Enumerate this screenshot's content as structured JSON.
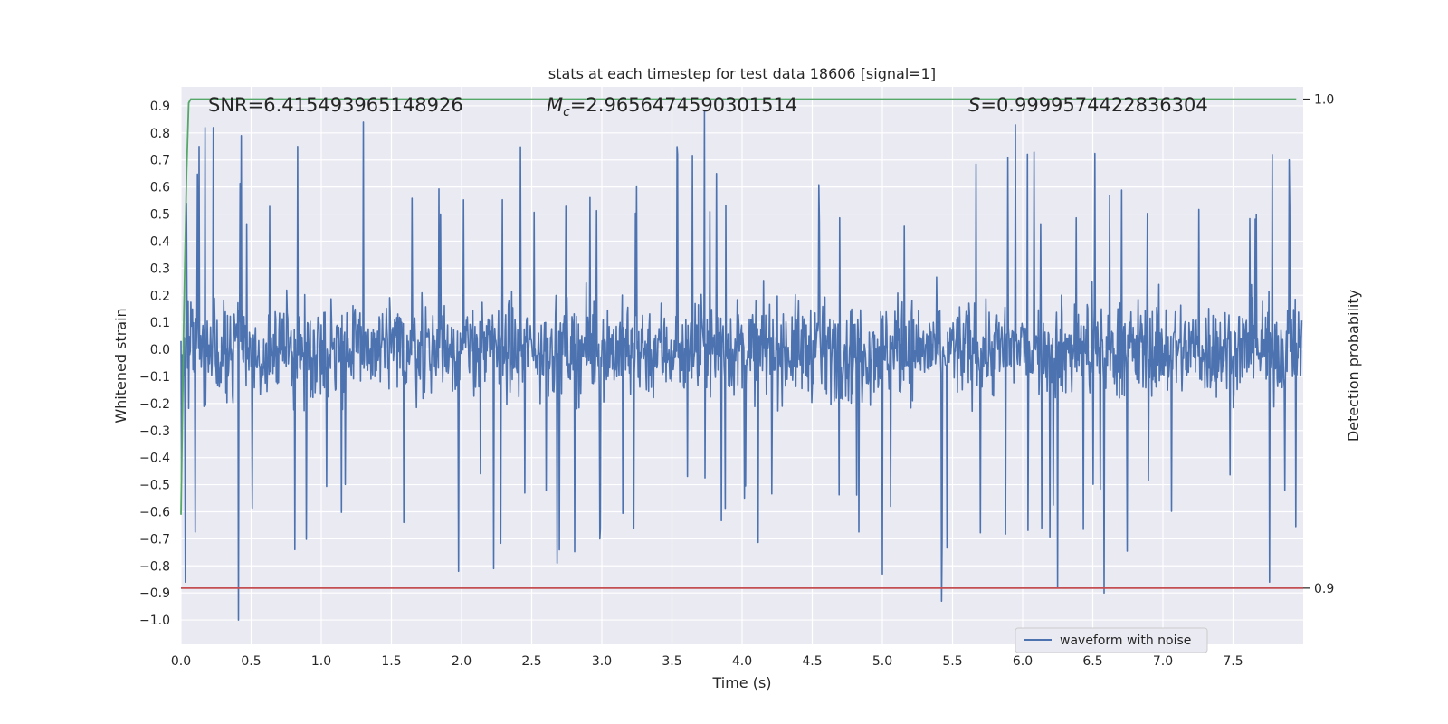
{
  "chart_data": {
    "type": "line",
    "title": "stats at each timestep for test data 18606 [signal=1]",
    "xlabel": "Time (s)",
    "ylabel": "Whitened strain",
    "ylabel_right": "Detection probability",
    "xlim": [
      0.0,
      8.0
    ],
    "ylim": [
      -1.09,
      0.97
    ],
    "ylim_right": [
      0.8885,
      1.0025
    ],
    "x_ticks": [
      0.0,
      0.5,
      1.0,
      1.5,
      2.0,
      2.5,
      3.0,
      3.5,
      4.0,
      4.5,
      5.0,
      5.5,
      6.0,
      6.5,
      7.0,
      7.5
    ],
    "y_ticks": [
      0.9,
      0.8,
      0.7,
      0.6,
      0.5,
      0.4,
      0.3,
      0.2,
      0.1,
      0.0,
      -0.1,
      -0.2,
      -0.3,
      -0.4,
      -0.5,
      -0.6,
      -0.7,
      -0.8,
      -0.9,
      -1.0
    ],
    "y_ticks_right": [
      1.0,
      0.9
    ],
    "grid": true,
    "legend": {
      "position": "lower-right",
      "entries": [
        "waveform with noise"
      ]
    },
    "annotations": {
      "snr": "SNR=6.415493965148926",
      "mc_symbol": "M",
      "mc_subscript": "c",
      "mc_value": "=2.9656474590301514",
      "s_symbol": "S",
      "s_value": "=0.9999574422836304"
    },
    "series": [
      {
        "name": "waveform with noise",
        "axis": "left",
        "color": "#4c72b0",
        "duration": 7.99,
        "samples": 2048,
        "amplitude_note": "noise",
        "peaks": [
          {
            "x": 0.03,
            "y": -0.86
          },
          {
            "x": 0.04,
            "y": 0.54
          },
          {
            "x": 0.13,
            "y": 0.75
          },
          {
            "x": 0.17,
            "y": 0.82
          },
          {
            "x": 0.23,
            "y": 0.82
          },
          {
            "x": 0.41,
            "y": -1.0
          },
          {
            "x": 0.43,
            "y": 0.79
          },
          {
            "x": 0.81,
            "y": -0.74
          },
          {
            "x": 0.83,
            "y": 0.75
          },
          {
            "x": 1.3,
            "y": 0.84
          },
          {
            "x": 1.98,
            "y": -0.82
          },
          {
            "x": 2.23,
            "y": -0.81
          },
          {
            "x": 2.68,
            "y": -0.79
          },
          {
            "x": 3.73,
            "y": 0.88
          },
          {
            "x": 5.0,
            "y": -0.83
          },
          {
            "x": 5.42,
            "y": -0.93
          },
          {
            "x": 5.95,
            "y": 0.83
          },
          {
            "x": 6.25,
            "y": -0.88
          },
          {
            "x": 6.58,
            "y": -0.9
          },
          {
            "x": 7.76,
            "y": -0.86
          },
          {
            "x": 7.78,
            "y": 0.72
          },
          {
            "x": 7.9,
            "y": 0.7
          }
        ]
      },
      {
        "name": "detection probability",
        "axis": "right",
        "color": "#55a868",
        "x": [
          0.0,
          0.02,
          0.04,
          0.055,
          0.07,
          7.95
        ],
        "values": [
          0.915,
          0.955,
          0.985,
          0.9992,
          1.0,
          1.0
        ]
      },
      {
        "name": "threshold",
        "axis": "right",
        "color": "#c44e52",
        "x": [
          0.0,
          8.0
        ],
        "values": [
          0.9,
          0.9
        ]
      }
    ]
  }
}
